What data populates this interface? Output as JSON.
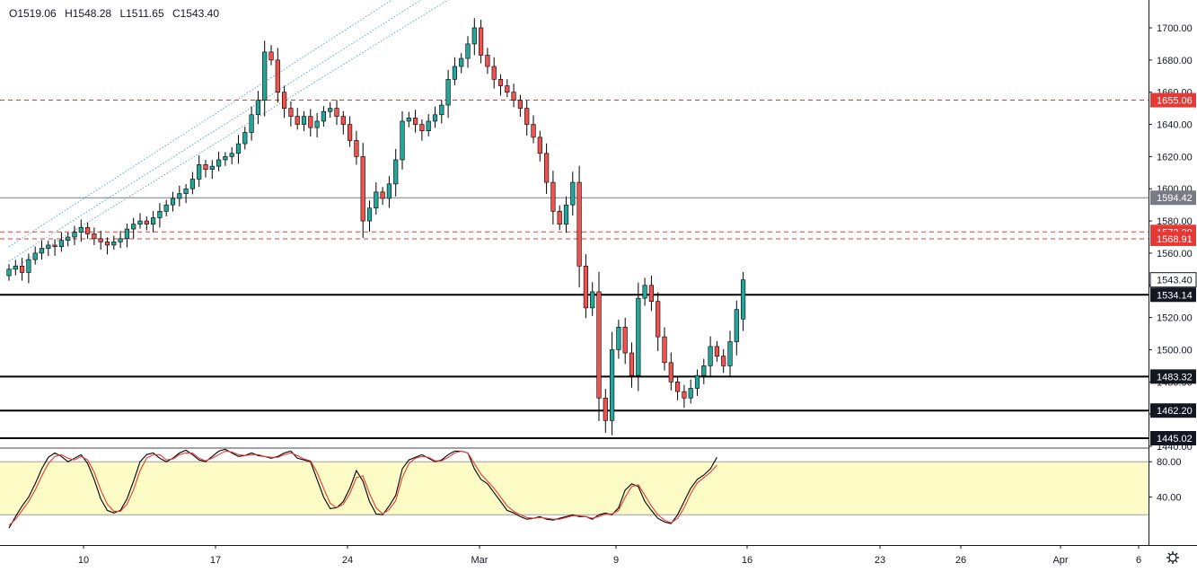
{
  "header": {
    "open_label": "O1519.06",
    "high_label": "H1548.28",
    "low_label": "L1511.65",
    "close_label": "C1543.40"
  },
  "colors": {
    "bull": "#26a69a",
    "bear": "#ef5350",
    "channel": "#5fa8d3",
    "red_level": "#e53935",
    "stoch_k": "#000000",
    "stoch_d": "#e53935",
    "stoch_band": "#fdfbc6"
  },
  "chart_data": [
    {
      "type": "candlestick",
      "title": "",
      "xlabel": "",
      "ylabel": "",
      "ylim": [
        1437,
        1712
      ],
      "grid": false,
      "x_ticks": [
        "10",
        "17",
        "24",
        "Mar",
        "9",
        "16",
        "23",
        "26",
        "Apr",
        "6"
      ],
      "y_ticks": [
        "1440.00",
        "1460.00",
        "1480.00",
        "1500.00",
        "1520.00",
        "1540.00",
        "1560.00",
        "1580.00",
        "1600.00",
        "1620.00",
        "1640.00",
        "1660.00",
        "1680.00",
        "1700.00"
      ],
      "price_labels": [
        {
          "text": "1655.06",
          "value": 1655.06,
          "style": "red"
        },
        {
          "text": "1594.42",
          "value": 1594.42,
          "style": "gray"
        },
        {
          "text": "1573.20",
          "value": 1573.2,
          "style": "red-hidden"
        },
        {
          "text": "1568.91",
          "value": 1568.91,
          "style": "red"
        },
        {
          "text": "1543.40",
          "value": 1543.4,
          "style": "last"
        },
        {
          "text": "1534.14",
          "value": 1534.14,
          "style": "black"
        },
        {
          "text": "1483.32",
          "value": 1483.32,
          "style": "black"
        },
        {
          "text": "1462.20",
          "value": 1462.2,
          "style": "black"
        },
        {
          "text": "1445.02",
          "value": 1445.02,
          "style": "black"
        }
      ],
      "close_series": [
        1550,
        1552,
        1548,
        1556,
        1560,
        1563,
        1565,
        1564,
        1568,
        1570,
        1573,
        1576,
        1572,
        1569,
        1567,
        1565,
        1567,
        1569,
        1575,
        1578,
        1580,
        1578,
        1582,
        1586,
        1590,
        1594,
        1597,
        1600,
        1606,
        1615,
        1612,
        1614,
        1618,
        1620,
        1622,
        1628,
        1635,
        1646,
        1655,
        1685,
        1680,
        1660,
        1650,
        1645,
        1640,
        1645,
        1638,
        1642,
        1648,
        1650,
        1645,
        1640,
        1630,
        1620,
        1580,
        1588,
        1598,
        1594,
        1603,
        1618,
        1642,
        1644,
        1640,
        1636,
        1642,
        1646,
        1652,
        1668,
        1676,
        1681,
        1690,
        1700,
        1683,
        1676,
        1668,
        1664,
        1660,
        1655,
        1650,
        1640,
        1632,
        1622,
        1604,
        1586,
        1578,
        1590,
        1604,
        1552,
        1526,
        1536,
        1470,
        1456,
        1500,
        1514,
        1498,
        1484,
        1532,
        1540,
        1530,
        1508,
        1492,
        1480,
        1474,
        1470,
        1476,
        1484,
        1490,
        1502,
        1496,
        1490,
        1505,
        1525,
        1543.4
      ],
      "last_candle": {
        "open": 1519.06,
        "high": 1548.28,
        "low": 1511.65,
        "close": 1543.4
      },
      "channel_lines": [
        {
          "from": [
            0,
            1549
          ],
          "to": [
            72,
            1730
          ]
        },
        {
          "from": [
            0,
            1555
          ],
          "to": [
            72,
            1741
          ]
        },
        {
          "from": [
            0,
            1564
          ],
          "to": [
            72,
            1753
          ]
        }
      ]
    },
    {
      "type": "line",
      "title": "",
      "ylim": [
        0,
        100
      ],
      "y_ticks": [
        "40.00",
        "80.00"
      ],
      "band": [
        20,
        80
      ],
      "series": [
        {
          "values": [
            5,
            18,
            30,
            40,
            55,
            72,
            85,
            90,
            86,
            80,
            84,
            88,
            78,
            60,
            38,
            25,
            22,
            25,
            38,
            58,
            80,
            88,
            90,
            84,
            80,
            84,
            90,
            93,
            88,
            82,
            80,
            86,
            92,
            94,
            90,
            86,
            87,
            90,
            87,
            86,
            84,
            86,
            90,
            92,
            84,
            82,
            80,
            60,
            40,
            27,
            28,
            35,
            50,
            70,
            58,
            35,
            21,
            20,
            30,
            42,
            72,
            82,
            85,
            88,
            84,
            80,
            82,
            88,
            92,
            92,
            90,
            72,
            60,
            55,
            45,
            35,
            25,
            22,
            18,
            15,
            16,
            18,
            15,
            14,
            16,
            18,
            20,
            18,
            18,
            15,
            20,
            22,
            20,
            28,
            48,
            55,
            52,
            35,
            25,
            16,
            12,
            10,
            20,
            35,
            50,
            60,
            65,
            72,
            85
          ]
        },
        {
          "values": [
            8,
            15,
            25,
            35,
            48,
            64,
            78,
            86,
            88,
            84,
            82,
            86,
            82,
            68,
            48,
            32,
            24,
            24,
            32,
            48,
            70,
            84,
            88,
            88,
            82,
            83,
            88,
            90,
            90,
            84,
            81,
            84,
            88,
            92,
            91,
            88,
            87,
            88,
            88,
            86,
            85,
            85,
            88,
            90,
            87,
            83,
            81,
            68,
            50,
            33,
            28,
            32,
            44,
            62,
            64,
            44,
            28,
            21,
            26,
            36,
            62,
            78,
            84,
            86,
            85,
            81,
            81,
            85,
            90,
            92,
            90,
            78,
            66,
            58,
            50,
            40,
            30,
            24,
            20,
            17,
            16,
            17,
            16,
            15,
            15,
            17,
            19,
            19,
            18,
            16,
            18,
            21,
            21,
            25,
            40,
            52,
            54,
            42,
            30,
            20,
            14,
            11,
            16,
            28,
            44,
            56,
            62,
            68,
            76
          ]
        }
      ]
    }
  ]
}
